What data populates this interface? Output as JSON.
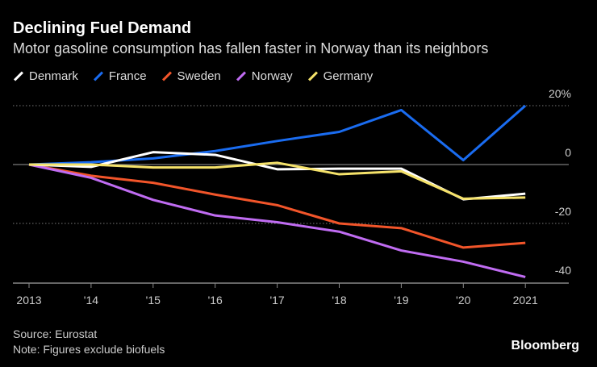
{
  "chart_data": {
    "type": "line",
    "title": "Declining Fuel Demand",
    "subtitle": "Motor gasoline consumption has fallen faster in Norway than its neighbors",
    "categories": [
      "2013",
      "'14",
      "'15",
      "'16",
      "'17",
      "'18",
      "'19",
      "'20",
      "2021"
    ],
    "ylim": [
      -40,
      20
    ],
    "yticks": [
      {
        "v": 20,
        "label": "20%"
      },
      {
        "v": 0,
        "label": "0"
      },
      {
        "v": -20,
        "label": "-20"
      },
      {
        "v": -40,
        "label": "-40"
      }
    ],
    "legend_placement": "top-left",
    "series": [
      {
        "name": "Denmark",
        "color": "#ffffff",
        "values": [
          0,
          -0.8,
          4.2,
          3.3,
          -1.6,
          -1.4,
          -1.4,
          -11.8,
          -9.9
        ]
      },
      {
        "name": "France",
        "color": "#1a6cf0",
        "values": [
          0,
          0.8,
          2.1,
          4.6,
          8,
          11.1,
          18.5,
          1.5,
          20
        ]
      },
      {
        "name": "Sweden",
        "color": "#f2552a",
        "values": [
          0,
          -3.8,
          -6.2,
          -10.2,
          -13.8,
          -20,
          -21.6,
          -28.2,
          -26.6
        ]
      },
      {
        "name": "Norway",
        "color": "#c06cf2",
        "values": [
          0,
          -4.5,
          -12,
          -17.3,
          -19.6,
          -22.8,
          -29.2,
          -33,
          -38.2
        ]
      },
      {
        "name": "Germany",
        "color": "#f5e26a",
        "values": [
          0,
          0,
          -1,
          -1,
          0.6,
          -3.3,
          -2.3,
          -11.6,
          -11.2
        ]
      }
    ]
  },
  "source": "Source: Eurostat",
  "note": "Note: Figures exclude biofuels",
  "brand": "Bloomberg"
}
